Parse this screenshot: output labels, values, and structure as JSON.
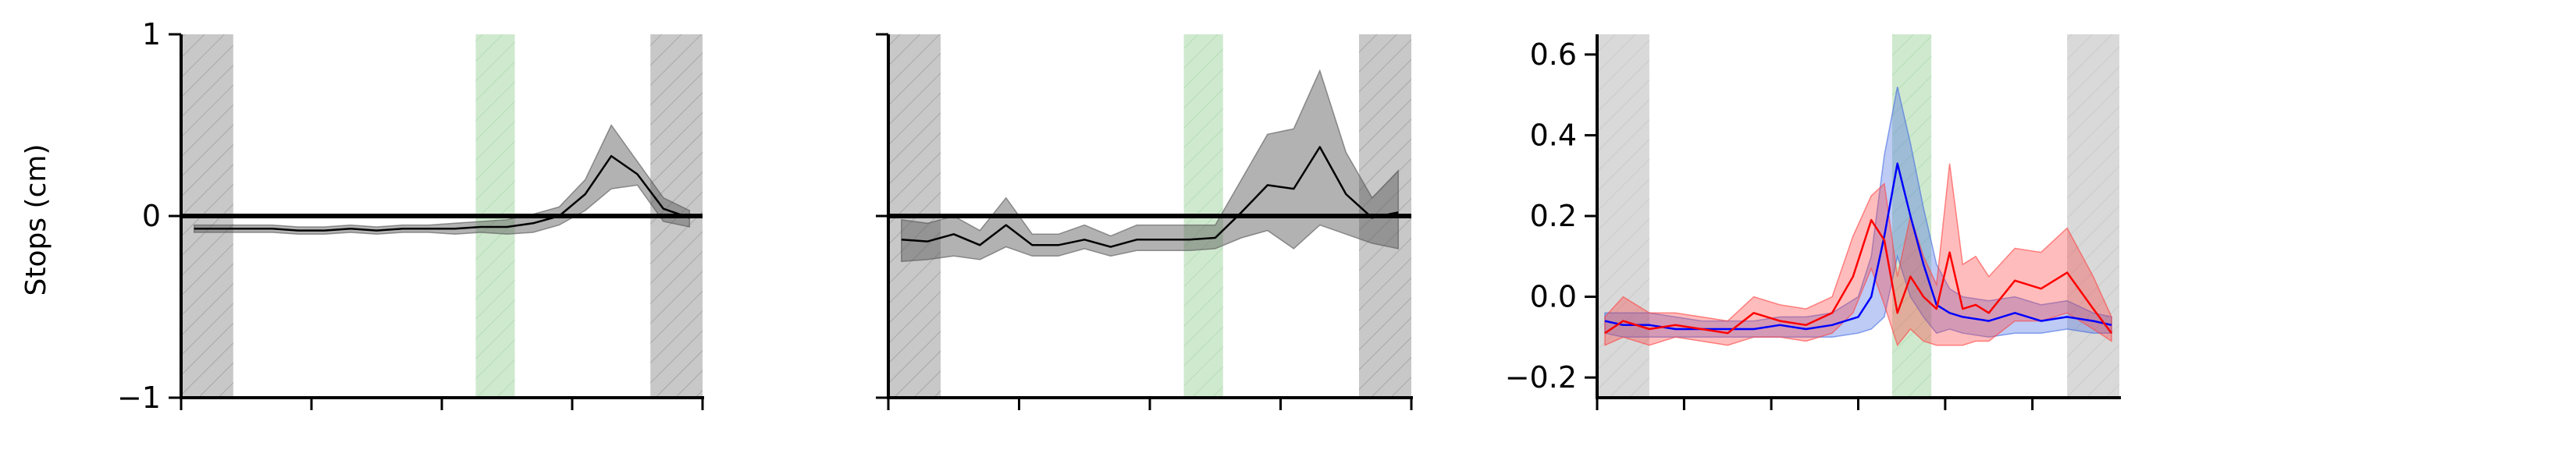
{
  "ylabel": "Stops (cm)",
  "colors": {
    "zone_gray": "#808080",
    "zone_green": "#7fc97f",
    "zone_gray_light": "#b0b0b0",
    "black": "#000000",
    "blue": "#0000ff",
    "red": "#ff0000",
    "band_gray": "#555555",
    "band_blue": "#4169e1",
    "band_red": "#ff4040"
  },
  "chart_data": [
    {
      "type": "line",
      "ylabel": "Stops (cm)",
      "ylim": [
        -1,
        1
      ],
      "xlim": [
        0,
        20
      ],
      "yticks": [
        -1,
        0,
        1
      ],
      "ytick_labels": [
        "−1",
        "0",
        "1"
      ],
      "xticks": [
        0,
        5,
        10,
        15,
        20
      ],
      "zero_line": true,
      "zones": [
        {
          "x0": 0,
          "x1": 2,
          "kind": "gray"
        },
        {
          "x0": 11.3,
          "x1": 12.8,
          "kind": "green"
        },
        {
          "x0": 18,
          "x1": 20,
          "kind": "gray"
        }
      ],
      "series": [
        {
          "color": "black",
          "x": [
            0.5,
            1.5,
            2.5,
            3.5,
            4.5,
            5.5,
            6.5,
            7.5,
            8.5,
            9.5,
            10.5,
            11.5,
            12.5,
            13.5,
            14.5,
            15.5,
            16.5,
            17.5,
            18.5,
            19.5
          ],
          "y": [
            -0.07,
            -0.07,
            -0.07,
            -0.07,
            -0.08,
            -0.08,
            -0.07,
            -0.08,
            -0.07,
            -0.07,
            -0.07,
            -0.06,
            -0.06,
            -0.04,
            0.0,
            0.12,
            0.33,
            0.23,
            0.04,
            -0.01
          ],
          "lower": [
            -0.09,
            -0.09,
            -0.09,
            -0.09,
            -0.1,
            -0.1,
            -0.09,
            -0.1,
            -0.09,
            -0.09,
            -0.1,
            -0.09,
            -0.1,
            -0.09,
            -0.05,
            0.03,
            0.15,
            0.17,
            -0.03,
            -0.06
          ],
          "upper": [
            -0.05,
            -0.05,
            -0.05,
            -0.05,
            -0.06,
            -0.06,
            -0.05,
            -0.06,
            -0.05,
            -0.05,
            -0.04,
            -0.03,
            -0.02,
            0.01,
            0.05,
            0.2,
            0.5,
            0.3,
            0.1,
            0.03
          ]
        }
      ]
    },
    {
      "type": "line",
      "ylim": [
        -1,
        1
      ],
      "xlim": [
        0,
        20
      ],
      "yticks": [
        -1,
        0,
        1
      ],
      "ytick_labels": [
        "",
        "",
        ""
      ],
      "xticks": [
        0,
        5,
        10,
        15,
        20
      ],
      "zero_line": true,
      "zones": [
        {
          "x0": 0,
          "x1": 2,
          "kind": "gray"
        },
        {
          "x0": 11.3,
          "x1": 12.8,
          "kind": "green"
        },
        {
          "x0": 18,
          "x1": 20,
          "kind": "gray"
        }
      ],
      "series": [
        {
          "color": "black",
          "x": [
            0.5,
            1.5,
            2.5,
            3.5,
            4.5,
            5.5,
            6.5,
            7.5,
            8.5,
            9.5,
            10.5,
            11.5,
            12.5,
            13.5,
            14.5,
            15.5,
            16.5,
            17.5,
            18.5,
            19.5
          ],
          "y": [
            -0.13,
            -0.14,
            -0.1,
            -0.16,
            -0.05,
            -0.16,
            -0.16,
            -0.13,
            -0.17,
            -0.13,
            -0.13,
            -0.13,
            -0.12,
            0.02,
            0.17,
            0.15,
            0.38,
            0.12,
            -0.01,
            0.02
          ],
          "lower": [
            -0.25,
            -0.24,
            -0.22,
            -0.24,
            -0.17,
            -0.22,
            -0.22,
            -0.18,
            -0.22,
            -0.19,
            -0.19,
            -0.19,
            -0.18,
            -0.12,
            -0.08,
            -0.18,
            -0.05,
            -0.1,
            -0.15,
            -0.18
          ],
          "upper": [
            -0.02,
            -0.04,
            0.0,
            -0.08,
            0.1,
            -0.1,
            -0.1,
            -0.05,
            -0.11,
            -0.05,
            -0.05,
            -0.05,
            -0.05,
            0.2,
            0.45,
            0.48,
            0.8,
            0.35,
            0.1,
            0.25
          ]
        }
      ]
    },
    {
      "type": "line",
      "ylim": [
        -0.25,
        0.65
      ],
      "xlim": [
        0,
        20
      ],
      "yticks": [
        -0.2,
        0.0,
        0.2,
        0.4,
        0.6
      ],
      "ytick_labels": [
        "−0.2",
        "0.0",
        "0.2",
        "0.4",
        "0.6"
      ],
      "xticks": [
        0,
        3.33,
        6.67,
        10,
        13.33,
        16.67
      ],
      "zero_line": false,
      "zones": [
        {
          "x0": 0,
          "x1": 2,
          "kind": "gray_light"
        },
        {
          "x0": 11.3,
          "x1": 12.8,
          "kind": "green"
        },
        {
          "x0": 18,
          "x1": 20,
          "kind": "gray_light"
        }
      ],
      "series": [
        {
          "color": "blue",
          "x": [
            0.3,
            1,
            2,
            3,
            4,
            5,
            6,
            7,
            8,
            9,
            10,
            10.5,
            11,
            11.5,
            12,
            12.5,
            13,
            13.5,
            14,
            15,
            16,
            17,
            18,
            19,
            19.7
          ],
          "y": [
            -0.06,
            -0.07,
            -0.07,
            -0.08,
            -0.08,
            -0.08,
            -0.08,
            -0.07,
            -0.08,
            -0.07,
            -0.05,
            0.0,
            0.15,
            0.33,
            0.2,
            0.08,
            -0.02,
            -0.04,
            -0.05,
            -0.06,
            -0.04,
            -0.06,
            -0.05,
            -0.06,
            -0.07
          ],
          "lower": [
            -0.09,
            -0.1,
            -0.1,
            -0.1,
            -0.1,
            -0.1,
            -0.1,
            -0.1,
            -0.1,
            -0.1,
            -0.09,
            -0.08,
            -0.05,
            0.1,
            0.0,
            -0.05,
            -0.09,
            -0.08,
            -0.09,
            -0.1,
            -0.09,
            -0.09,
            -0.08,
            -0.09,
            -0.09
          ],
          "upper": [
            -0.04,
            -0.04,
            -0.04,
            -0.05,
            -0.06,
            -0.06,
            -0.06,
            -0.05,
            -0.05,
            -0.04,
            0.0,
            0.1,
            0.35,
            0.52,
            0.38,
            0.22,
            0.08,
            0.02,
            0.0,
            -0.01,
            0.0,
            -0.02,
            -0.01,
            -0.04,
            -0.05
          ]
        },
        {
          "color": "red",
          "x": [
            0.3,
            1,
            2,
            3,
            4,
            5,
            6,
            7,
            8,
            9,
            9.8,
            10.5,
            11,
            11.5,
            12,
            12.5,
            13,
            13.5,
            14,
            14.5,
            15,
            16,
            17,
            18,
            19,
            19.7
          ],
          "y": [
            -0.09,
            -0.06,
            -0.08,
            -0.07,
            -0.08,
            -0.09,
            -0.04,
            -0.06,
            -0.07,
            -0.04,
            0.05,
            0.19,
            0.14,
            -0.04,
            0.05,
            0.0,
            -0.03,
            0.11,
            -0.03,
            -0.02,
            -0.04,
            0.04,
            0.02,
            0.06,
            -0.03,
            -0.09
          ],
          "lower": [
            -0.12,
            -0.1,
            -0.12,
            -0.1,
            -0.11,
            -0.12,
            -0.1,
            -0.1,
            -0.11,
            -0.09,
            -0.04,
            0.07,
            -0.02,
            -0.12,
            -0.08,
            -0.11,
            -0.12,
            -0.12,
            -0.12,
            -0.11,
            -0.11,
            -0.06,
            -0.06,
            -0.04,
            -0.08,
            -0.11
          ],
          "upper": [
            -0.05,
            0.0,
            -0.04,
            -0.04,
            -0.05,
            -0.06,
            0.0,
            -0.02,
            -0.03,
            0.0,
            0.15,
            0.25,
            0.28,
            0.05,
            0.2,
            0.1,
            0.03,
            0.33,
            0.08,
            0.1,
            0.05,
            0.12,
            0.11,
            0.17,
            0.05,
            -0.05
          ]
        }
      ]
    }
  ]
}
